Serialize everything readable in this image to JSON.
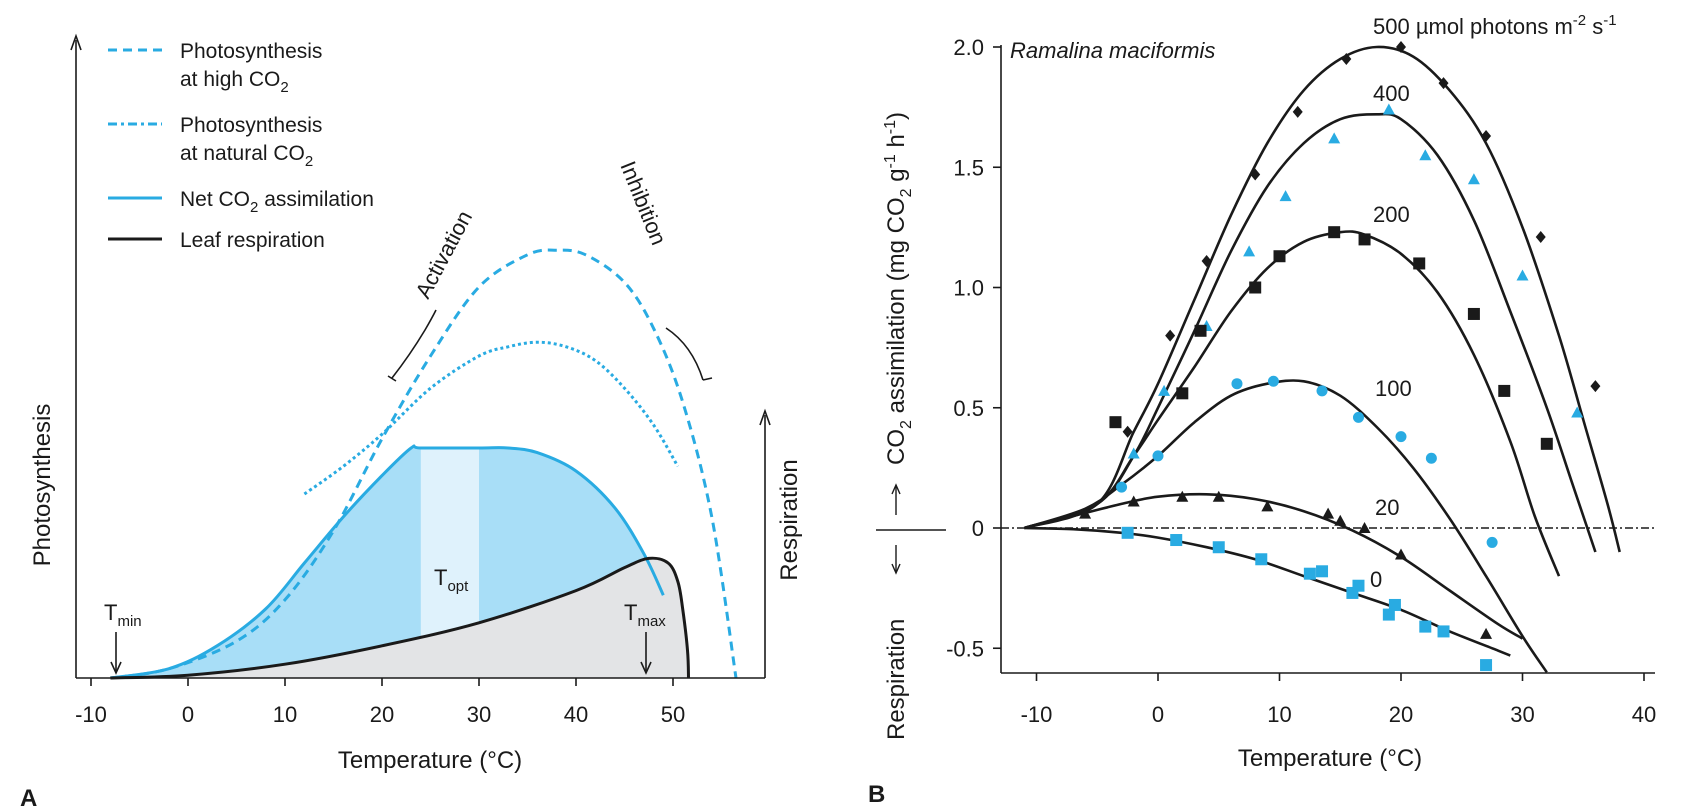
{
  "chart_data": [
    {
      "panel": "A",
      "type": "area",
      "xlabel": "Temperature (°C)",
      "ylabel_left": "Photosynthesis",
      "ylabel_right": "Respiration",
      "xlim": [
        -10,
        60
      ],
      "xticks": [
        -10,
        0,
        10,
        20,
        30,
        40,
        50
      ],
      "ylim": [
        0,
        1
      ],
      "legend_position": "top-left",
      "legend": [
        {
          "key": "high",
          "text1": "Photosynthesis",
          "text2": "at high CO",
          "sub2": "2",
          "style": "dashed",
          "color": "#29abe2"
        },
        {
          "key": "nat",
          "text1": "Photosynthesis",
          "text2": "at natural CO",
          "sub2": "2",
          "style": "dotted",
          "color": "#29abe2"
        },
        {
          "key": "net",
          "text1": "Net CO",
          "sub1": "2",
          "suffix1": " assimilation",
          "style": "solid",
          "color": "#29abe2"
        },
        {
          "key": "resp",
          "text1": "Leaf respiration",
          "style": "solid",
          "color": "#1a1a1a"
        }
      ],
      "annotations": {
        "activation": "Activation",
        "inhibition": "Inhibition",
        "tmin": "T",
        "tmin_sub": "min",
        "topt": "T",
        "topt_sub": "opt",
        "tmax": "T",
        "tmax_sub": "max"
      },
      "series": [
        {
          "name": "high",
          "x": [
            -8,
            -2,
            5,
            10,
            15,
            20,
            25,
            30,
            35,
            38,
            41,
            45,
            48,
            51,
            54,
            56.5
          ],
          "y": [
            0,
            0.02,
            0.08,
            0.17,
            0.32,
            0.52,
            0.7,
            0.85,
            0.92,
            0.93,
            0.92,
            0.86,
            0.76,
            0.6,
            0.35,
            0
          ]
        },
        {
          "name": "nat",
          "x": [
            12,
            16,
            20,
            25,
            30,
            33,
            36,
            39,
            42,
            45,
            48,
            50.5
          ],
          "y": [
            0.4,
            0.46,
            0.53,
            0.63,
            0.7,
            0.72,
            0.73,
            0.72,
            0.69,
            0.63,
            0.55,
            0.46
          ]
        },
        {
          "name": "net",
          "x": [
            -8,
            -2,
            3,
            8,
            12,
            16,
            20,
            23,
            24,
            30,
            33,
            36,
            40,
            44,
            47,
            49
          ],
          "y": [
            0,
            0.02,
            0.07,
            0.15,
            0.25,
            0.35,
            0.44,
            0.5,
            0.5,
            0.5,
            0.5,
            0.49,
            0.45,
            0.37,
            0.27,
            0.18
          ]
        },
        {
          "name": "resp",
          "x": [
            -8,
            0,
            10,
            20,
            30,
            40,
            45,
            47.5,
            49.5,
            50.5,
            51,
            51.5,
            51.6
          ],
          "y": [
            0,
            0.006,
            0.03,
            0.07,
            0.12,
            0.19,
            0.24,
            0.26,
            0.25,
            0.21,
            0.15,
            0.06,
            0
          ]
        }
      ],
      "topt_band": [
        24,
        30
      ],
      "tmin": -8,
      "tmax": 47
    },
    {
      "panel": "B",
      "type": "scatter",
      "title": "Ramalina maciformis",
      "xlabel": "Temperature (°C)",
      "ylabel": "CO",
      "ylabel_sub": "2",
      "ylabel_rest": " assimilation (mg CO",
      "ylabel_sub2": "2",
      "ylabel_rest2": " g",
      "ylabel_sup1": "-1",
      "ylabel_rest3": " h",
      "ylabel_sup2": "-1",
      "ylabel_end": ")",
      "ylabel_lower": "Respiration",
      "xlim": [
        -14,
        40
      ],
      "ylim": [
        -0.6,
        2.0
      ],
      "xticks": [
        -10,
        0,
        10,
        20,
        30,
        40
      ],
      "yticks": [
        "2.0",
        "1.5",
        "1.0",
        "0.5",
        "0",
        "-0.5"
      ],
      "ytick_values": [
        2.0,
        1.5,
        1.0,
        0.5,
        0,
        -0.5
      ],
      "grid": false,
      "series": [
        {
          "name": "500 µmol photons m",
          "sup": "-2",
          "name_end": " s",
          "sup2": "-1",
          "marker": "diamond",
          "color": "#1a1a1a",
          "curve": [
            [
              -11,
              0
            ],
            [
              -5,
              0.1
            ],
            [
              -2,
              0.4
            ],
            [
              0,
              0.6
            ],
            [
              3,
              0.95
            ],
            [
              6,
              1.3
            ],
            [
              9,
              1.6
            ],
            [
              12,
              1.82
            ],
            [
              15,
              1.95
            ],
            [
              18,
              2.0
            ],
            [
              21,
              1.96
            ],
            [
              24,
              1.82
            ],
            [
              27,
              1.6
            ],
            [
              30,
              1.25
            ],
            [
              33,
              0.8
            ],
            [
              35,
              0.45
            ],
            [
              37,
              0.1
            ],
            [
              38,
              -0.1
            ]
          ],
          "points": [
            [
              -2.5,
              0.4
            ],
            [
              1,
              0.8
            ],
            [
              4,
              1.11
            ],
            [
              8,
              1.47
            ],
            [
              11.5,
              1.73
            ],
            [
              15.5,
              1.95
            ],
            [
              20,
              2.0
            ],
            [
              23.5,
              1.85
            ],
            [
              27,
              1.63
            ],
            [
              31.5,
              1.21
            ],
            [
              36,
              0.59
            ]
          ]
        },
        {
          "name": "400",
          "marker": "triangle",
          "color": "#29abe2",
          "curve": [
            [
              -11,
              0
            ],
            [
              -5,
              0.1
            ],
            [
              -2,
              0.3
            ],
            [
              0,
              0.5
            ],
            [
              3,
              0.82
            ],
            [
              6,
              1.15
            ],
            [
              9,
              1.42
            ],
            [
              12,
              1.6
            ],
            [
              15,
              1.7
            ],
            [
              18,
              1.72
            ],
            [
              20,
              1.7
            ],
            [
              23,
              1.55
            ],
            [
              26,
              1.28
            ],
            [
              29,
              0.9
            ],
            [
              32,
              0.5
            ],
            [
              34,
              0.2
            ],
            [
              36,
              -0.1
            ]
          ],
          "points": [
            [
              -2,
              0.31
            ],
            [
              0.5,
              0.57
            ],
            [
              4,
              0.84
            ],
            [
              7.5,
              1.15
            ],
            [
              10.5,
              1.38
            ],
            [
              14.5,
              1.62
            ],
            [
              19,
              1.74
            ],
            [
              22,
              1.55
            ],
            [
              26,
              1.45
            ],
            [
              30,
              1.05
            ],
            [
              34.5,
              0.48
            ]
          ]
        },
        {
          "name": "200",
          "marker": "square",
          "color": "#1a1a1a",
          "curve": [
            [
              -11,
              0
            ],
            [
              -5,
              0.1
            ],
            [
              -2,
              0.3
            ],
            [
              0,
              0.45
            ],
            [
              3,
              0.67
            ],
            [
              6,
              0.9
            ],
            [
              9,
              1.08
            ],
            [
              12,
              1.19
            ],
            [
              15,
              1.23
            ],
            [
              17,
              1.22
            ],
            [
              20,
              1.14
            ],
            [
              23,
              0.98
            ],
            [
              26,
              0.72
            ],
            [
              29,
              0.36
            ],
            [
              31,
              0.05
            ],
            [
              33,
              -0.2
            ]
          ],
          "points": [
            [
              -3.5,
              0.44
            ],
            [
              2,
              0.56
            ],
            [
              3.5,
              0.82
            ],
            [
              8,
              1.0
            ],
            [
              10,
              1.13
            ],
            [
              14.5,
              1.23
            ],
            [
              17,
              1.2
            ],
            [
              21.5,
              1.1
            ],
            [
              26,
              0.89
            ],
            [
              28.5,
              0.57
            ],
            [
              32,
              0.35
            ]
          ]
        },
        {
          "name": "100",
          "marker": "circle",
          "color": "#29abe2",
          "curve": [
            [
              -11,
              0
            ],
            [
              -6,
              0.08
            ],
            [
              -3,
              0.18
            ],
            [
              0,
              0.3
            ],
            [
              3,
              0.44
            ],
            [
              6,
              0.55
            ],
            [
              9,
              0.6
            ],
            [
              12,
              0.61
            ],
            [
              15,
              0.55
            ],
            [
              18,
              0.42
            ],
            [
              21,
              0.25
            ],
            [
              24,
              0.04
            ],
            [
              27,
              -0.2
            ],
            [
              30,
              -0.45
            ],
            [
              32,
              -0.6
            ]
          ],
          "points": [
            [
              -3,
              0.17
            ],
            [
              0,
              0.3
            ],
            [
              6.5,
              0.6
            ],
            [
              9.5,
              0.61
            ],
            [
              13.5,
              0.57
            ],
            [
              16.5,
              0.46
            ],
            [
              20,
              0.38
            ],
            [
              22.5,
              0.29
            ],
            [
              27.5,
              -0.06
            ]
          ]
        },
        {
          "name": "20",
          "marker": "triangle",
          "color": "#1a1a1a",
          "curve": [
            [
              -11,
              0
            ],
            [
              -7,
              0.05
            ],
            [
              -3,
              0.1
            ],
            [
              0,
              0.13
            ],
            [
              4,
              0.14
            ],
            [
              8,
              0.12
            ],
            [
              12,
              0.07
            ],
            [
              16,
              -0.01
            ],
            [
              20,
              -0.12
            ],
            [
              24,
              -0.26
            ],
            [
              28,
              -0.4
            ],
            [
              30,
              -0.46
            ]
          ],
          "points": [
            [
              -6,
              0.06
            ],
            [
              -2,
              0.11
            ],
            [
              2,
              0.13
            ],
            [
              5,
              0.13
            ],
            [
              9,
              0.09
            ],
            [
              14,
              0.06
            ],
            [
              15,
              0.03
            ],
            [
              17,
              0.0
            ],
            [
              20,
              -0.11
            ],
            [
              27,
              -0.44
            ]
          ]
        },
        {
          "name": "0",
          "marker": "square",
          "color": "#29abe2",
          "curve": [
            [
              -11,
              0
            ],
            [
              -7,
              -0.005
            ],
            [
              -3,
              -0.02
            ],
            [
              0,
              -0.04
            ],
            [
              4,
              -0.08
            ],
            [
              8,
              -0.13
            ],
            [
              12,
              -0.2
            ],
            [
              16,
              -0.27
            ],
            [
              20,
              -0.34
            ],
            [
              24,
              -0.43
            ],
            [
              28,
              -0.51
            ],
            [
              29,
              -0.53
            ]
          ],
          "points": [
            [
              -2.5,
              -0.02
            ],
            [
              1.5,
              -0.05
            ],
            [
              5,
              -0.08
            ],
            [
              8.5,
              -0.13
            ],
            [
              12.5,
              -0.19
            ],
            [
              13.5,
              -0.18
            ],
            [
              16,
              -0.27
            ],
            [
              16.5,
              -0.24
            ],
            [
              19,
              -0.36
            ],
            [
              19.5,
              -0.32
            ],
            [
              22,
              -0.41
            ],
            [
              23.5,
              -0.43
            ],
            [
              27,
              -0.57
            ]
          ]
        }
      ]
    }
  ],
  "panel_a_label": "A",
  "panel_b_label": "B"
}
